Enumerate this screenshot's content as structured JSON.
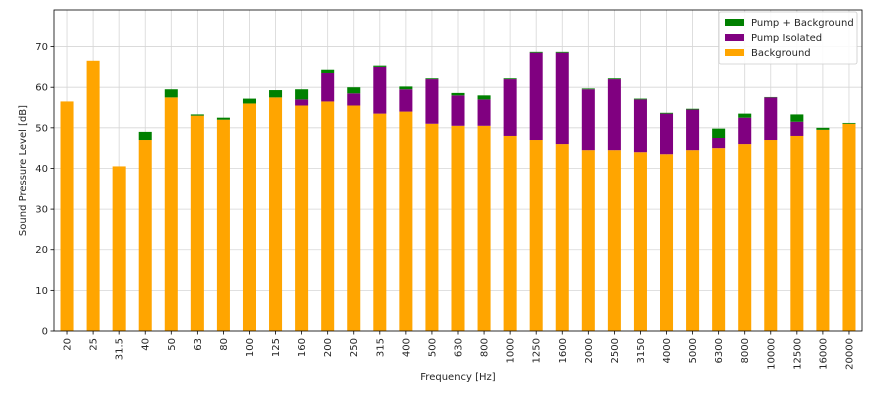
{
  "chart_data": {
    "type": "bar",
    "stacked": true,
    "xlabel": "Frequency [Hz]",
    "ylabel": "Sound Pressure Level [dB]",
    "ylim": [
      0,
      79
    ],
    "yticks": [
      0,
      10,
      20,
      30,
      40,
      50,
      60,
      70
    ],
    "grid": true,
    "legend_position": "top-right",
    "categories": [
      "20",
      "25",
      "31.5",
      "40",
      "50",
      "63",
      "80",
      "100",
      "125",
      "160",
      "200",
      "250",
      "315",
      "400",
      "500",
      "630",
      "800",
      "1000",
      "1250",
      "1600",
      "2000",
      "2500",
      "3150",
      "4000",
      "5000",
      "6300",
      "8000",
      "10000",
      "12500",
      "16000",
      "20000"
    ],
    "series": [
      {
        "name": "Background",
        "color": "#FFA500",
        "values": [
          56.5,
          66.5,
          40.5,
          47,
          57.5,
          53,
          52,
          56,
          57.5,
          55.5,
          56.5,
          55.5,
          53.5,
          54,
          51,
          50.5,
          50.5,
          48,
          47,
          46,
          44.5,
          44.5,
          44,
          43.5,
          44.5,
          45,
          46,
          47,
          48,
          49.5,
          51
        ]
      },
      {
        "name": "Pump Isolated",
        "color": "#800080",
        "values": [
          0,
          0,
          0,
          0,
          0,
          0,
          0,
          0,
          0,
          1.5,
          7,
          3,
          11.5,
          5.5,
          11,
          7.5,
          6.5,
          14,
          21.5,
          22.5,
          15,
          17.5,
          13,
          10,
          10,
          2.5,
          6.5,
          10.5,
          3.5,
          0,
          0
        ]
      },
      {
        "name": "Pump + Background",
        "color": "#008000",
        "values": [
          0,
          0,
          0,
          2,
          2,
          0.3,
          0.5,
          1.2,
          1.8,
          2.5,
          0.8,
          1.5,
          0.3,
          0.7,
          0.2,
          0.6,
          1,
          0.2,
          0.2,
          0.2,
          0.2,
          0.2,
          0.2,
          0.2,
          0.2,
          2.3,
          1,
          0.1,
          1.8,
          0.5,
          0.2
        ]
      }
    ]
  }
}
